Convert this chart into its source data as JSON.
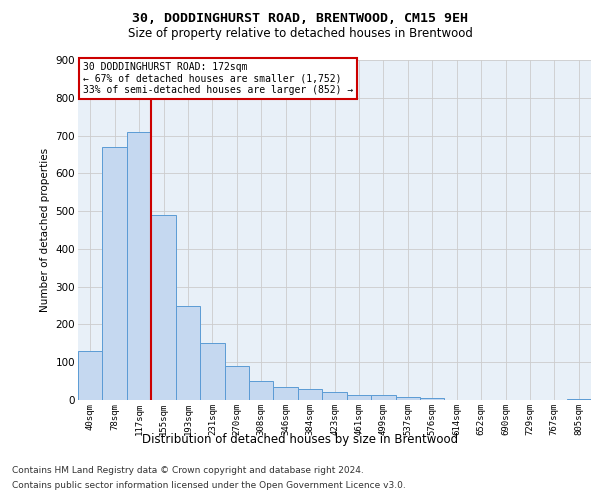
{
  "title1": "30, DODDINGHURST ROAD, BRENTWOOD, CM15 9EH",
  "title2": "Size of property relative to detached houses in Brentwood",
  "xlabel": "Distribution of detached houses by size in Brentwood",
  "ylabel": "Number of detached properties",
  "footer1": "Contains HM Land Registry data © Crown copyright and database right 2024.",
  "footer2": "Contains public sector information licensed under the Open Government Licence v3.0.",
  "bin_labels": [
    "40sqm",
    "78sqm",
    "117sqm",
    "155sqm",
    "193sqm",
    "231sqm",
    "270sqm",
    "308sqm",
    "346sqm",
    "384sqm",
    "423sqm",
    "461sqm",
    "499sqm",
    "537sqm",
    "576sqm",
    "614sqm",
    "652sqm",
    "690sqm",
    "729sqm",
    "767sqm",
    "805sqm"
  ],
  "bar_values": [
    130,
    670,
    710,
    490,
    250,
    150,
    90,
    50,
    35,
    30,
    20,
    12,
    12,
    8,
    5,
    0,
    0,
    0,
    0,
    0,
    3
  ],
  "bar_color": "#c5d8f0",
  "bar_edge_color": "#5b9bd5",
  "grid_color": "#cccccc",
  "vline_x": 2.5,
  "vline_color": "#cc0000",
  "annotation_text": "30 DODDINGHURST ROAD: 172sqm\n← 67% of detached houses are smaller (1,752)\n33% of semi-detached houses are larger (852) →",
  "annotation_box_color": "white",
  "annotation_box_edge": "#cc0000",
  "ylim": [
    0,
    900
  ],
  "yticks": [
    0,
    100,
    200,
    300,
    400,
    500,
    600,
    700,
    800,
    900
  ],
  "background_color": "#e8f0f8"
}
